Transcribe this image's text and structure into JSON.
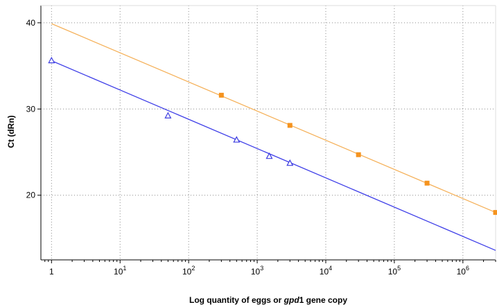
{
  "chart_data": {
    "type": "scatter",
    "title": "",
    "xlabel": "Log quantity of eggs or gpd1 gene copy",
    "xlabel_parts": [
      "Log quantity of eggs or ",
      "gpd",
      "1 gene copy"
    ],
    "ylabel": "Ct (dRn)",
    "x_scale": "log",
    "xlim": [
      0.7,
      3000000
    ],
    "ylim": [
      12.5,
      42
    ],
    "x_ticks": [
      {
        "base": "1",
        "exp": ""
      },
      {
        "base": "10",
        "exp": "1"
      },
      {
        "base": "10",
        "exp": "2"
      },
      {
        "base": "10",
        "exp": "3"
      },
      {
        "base": "10",
        "exp": "4"
      },
      {
        "base": "10",
        "exp": "5"
      },
      {
        "base": "10",
        "exp": "6"
      }
    ],
    "y_ticks": [
      "20",
      "30",
      "40"
    ],
    "grid": true,
    "legend": "none",
    "series": [
      {
        "color": "#f5931e",
        "line_color": "#f5b15a",
        "marker": "square",
        "points": [
          {
            "x": 300,
            "y": 31.6
          },
          {
            "x": 3000,
            "y": 28.1
          },
          {
            "x": 30000,
            "y": 24.7
          },
          {
            "x": 300000,
            "y": 21.4
          },
          {
            "x": 3000000,
            "y": 18.0
          }
        ],
        "fit": [
          [
            1,
            39.9
          ],
          [
            3000000,
            18.0
          ]
        ]
      },
      {
        "color": "#3b3be0",
        "line_color": "#4040e8",
        "marker": "triangle",
        "points": [
          {
            "x": 1,
            "y": 35.6
          },
          {
            "x": 50,
            "y": 29.2
          },
          {
            "x": 500,
            "y": 26.4
          },
          {
            "x": 1500,
            "y": 24.5
          },
          {
            "x": 3000,
            "y": 23.7
          }
        ],
        "fit": [
          [
            1,
            35.6
          ],
          [
            3000000,
            13.6
          ]
        ]
      }
    ]
  }
}
